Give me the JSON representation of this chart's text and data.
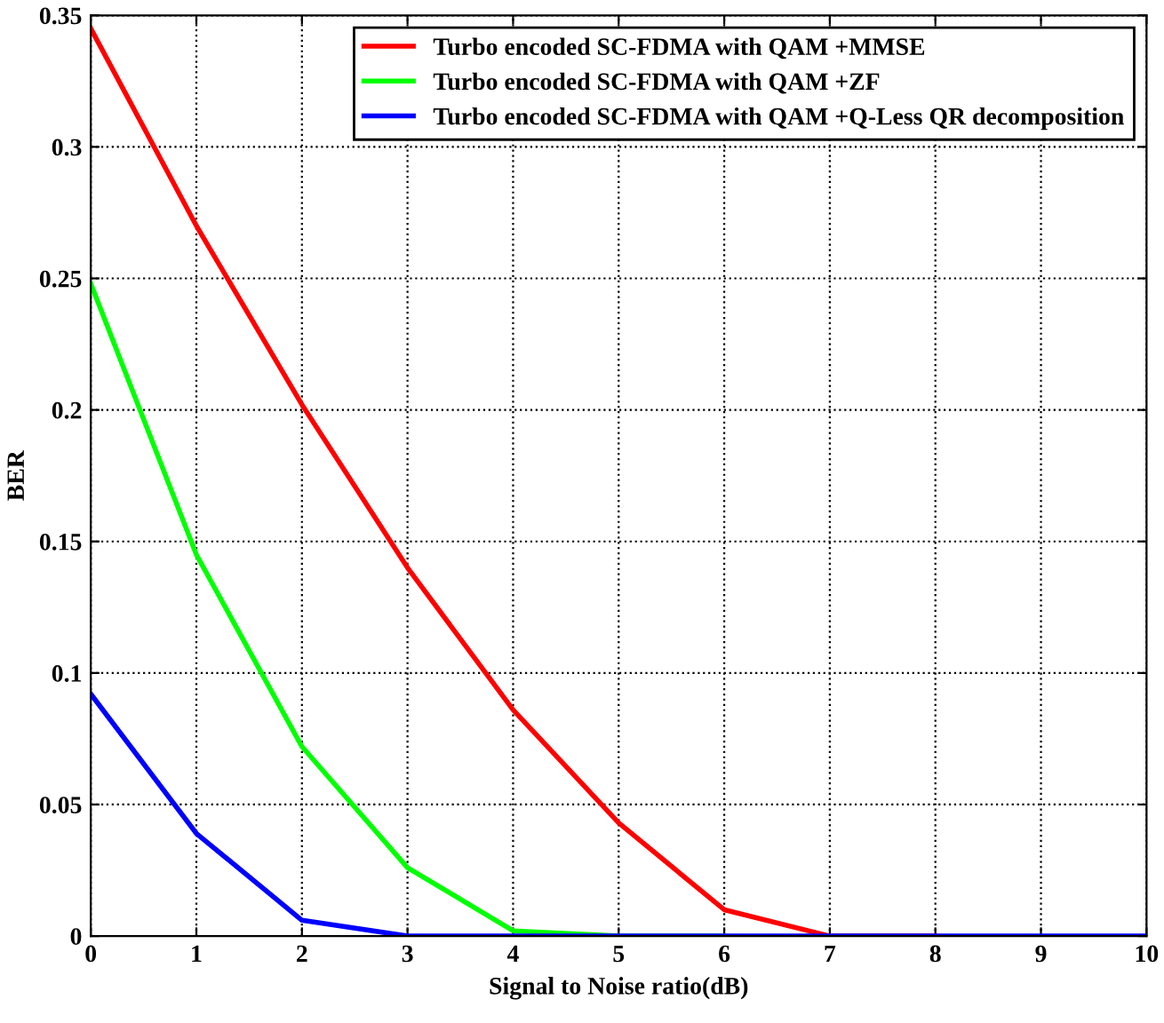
{
  "chart_data": {
    "type": "line",
    "xlabel": "Signal to Noise ratio(dB)",
    "ylabel": "BER",
    "x": [
      0,
      1,
      2,
      3,
      4,
      5,
      6,
      7,
      8,
      9,
      10
    ],
    "series": [
      {
        "name": "Turbo encoded SC-FDMA with QAM +MMSE",
        "color": "#ff0000",
        "values": [
          0.345,
          0.27,
          0.202,
          0.14,
          0.086,
          0.043,
          0.01,
          0,
          0,
          null,
          null
        ]
      },
      {
        "name": "Turbo encoded SC-FDMA with QAM +ZF",
        "color": "#00ff00",
        "values": [
          0.248,
          0.145,
          0.072,
          0.026,
          0.002,
          0,
          0,
          null,
          null,
          null,
          null
        ]
      },
      {
        "name": "Turbo encoded SC-FDMA with QAM +Q-Less QR decomposition",
        "color": "#0000ff",
        "values": [
          0.092,
          0.039,
          0.006,
          0,
          0,
          0,
          0,
          0,
          0,
          0,
          0
        ]
      }
    ],
    "xlim": [
      0,
      10
    ],
    "xticks": [
      0,
      1,
      2,
      3,
      4,
      5,
      6,
      7,
      8,
      9,
      10
    ],
    "ylim": [
      0,
      0.35
    ],
    "yticks": [
      0,
      0.05,
      0.1,
      0.15,
      0.2,
      0.25,
      0.3,
      0.35
    ],
    "grid": true,
    "legend": "top right",
    "line_style": "solid"
  }
}
